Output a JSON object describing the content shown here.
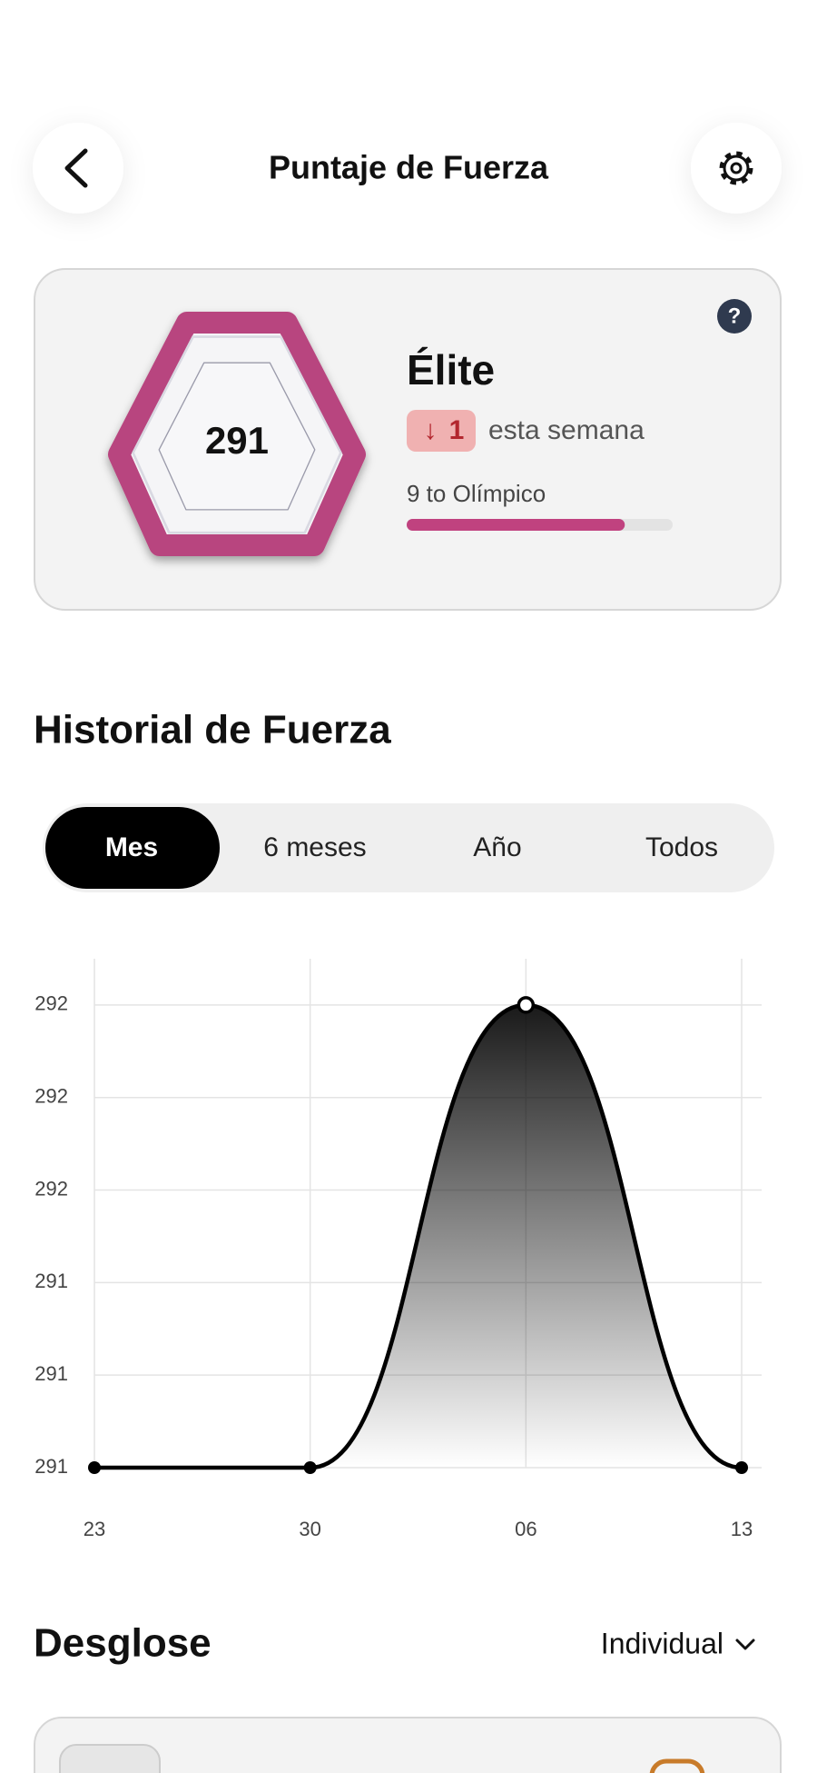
{
  "header": {
    "title": "Puntaje de Fuerza"
  },
  "score_card": {
    "score": 291,
    "level": "Élite",
    "change_arrow": "↓",
    "change": "1",
    "change_text": "esta semana",
    "next_level_text": "9 to Olímpico",
    "progress_percent": 82,
    "help": "?"
  },
  "history": {
    "title": "Historial de Fuerza",
    "tabs": [
      "Mes",
      "6 meses",
      "Año",
      "Todos"
    ],
    "selected_tab": 0
  },
  "chart_data": {
    "type": "line",
    "categories": [
      "23",
      "30",
      "06",
      "13"
    ],
    "values": [
      291,
      291,
      292,
      291
    ],
    "color": "#000000",
    "ylim": [
      291,
      292.1
    ],
    "yticks": [
      291,
      {
        "value": 291.2,
        "label": "291"
      },
      {
        "value": 291.4,
        "label": "291"
      },
      {
        "value": 291.6,
        "label": "292"
      },
      {
        "value": 291.8,
        "label": "292"
      },
      292
    ],
    "grid": true
  },
  "breakdown": {
    "title": "Desglose",
    "filter": "Individual"
  }
}
